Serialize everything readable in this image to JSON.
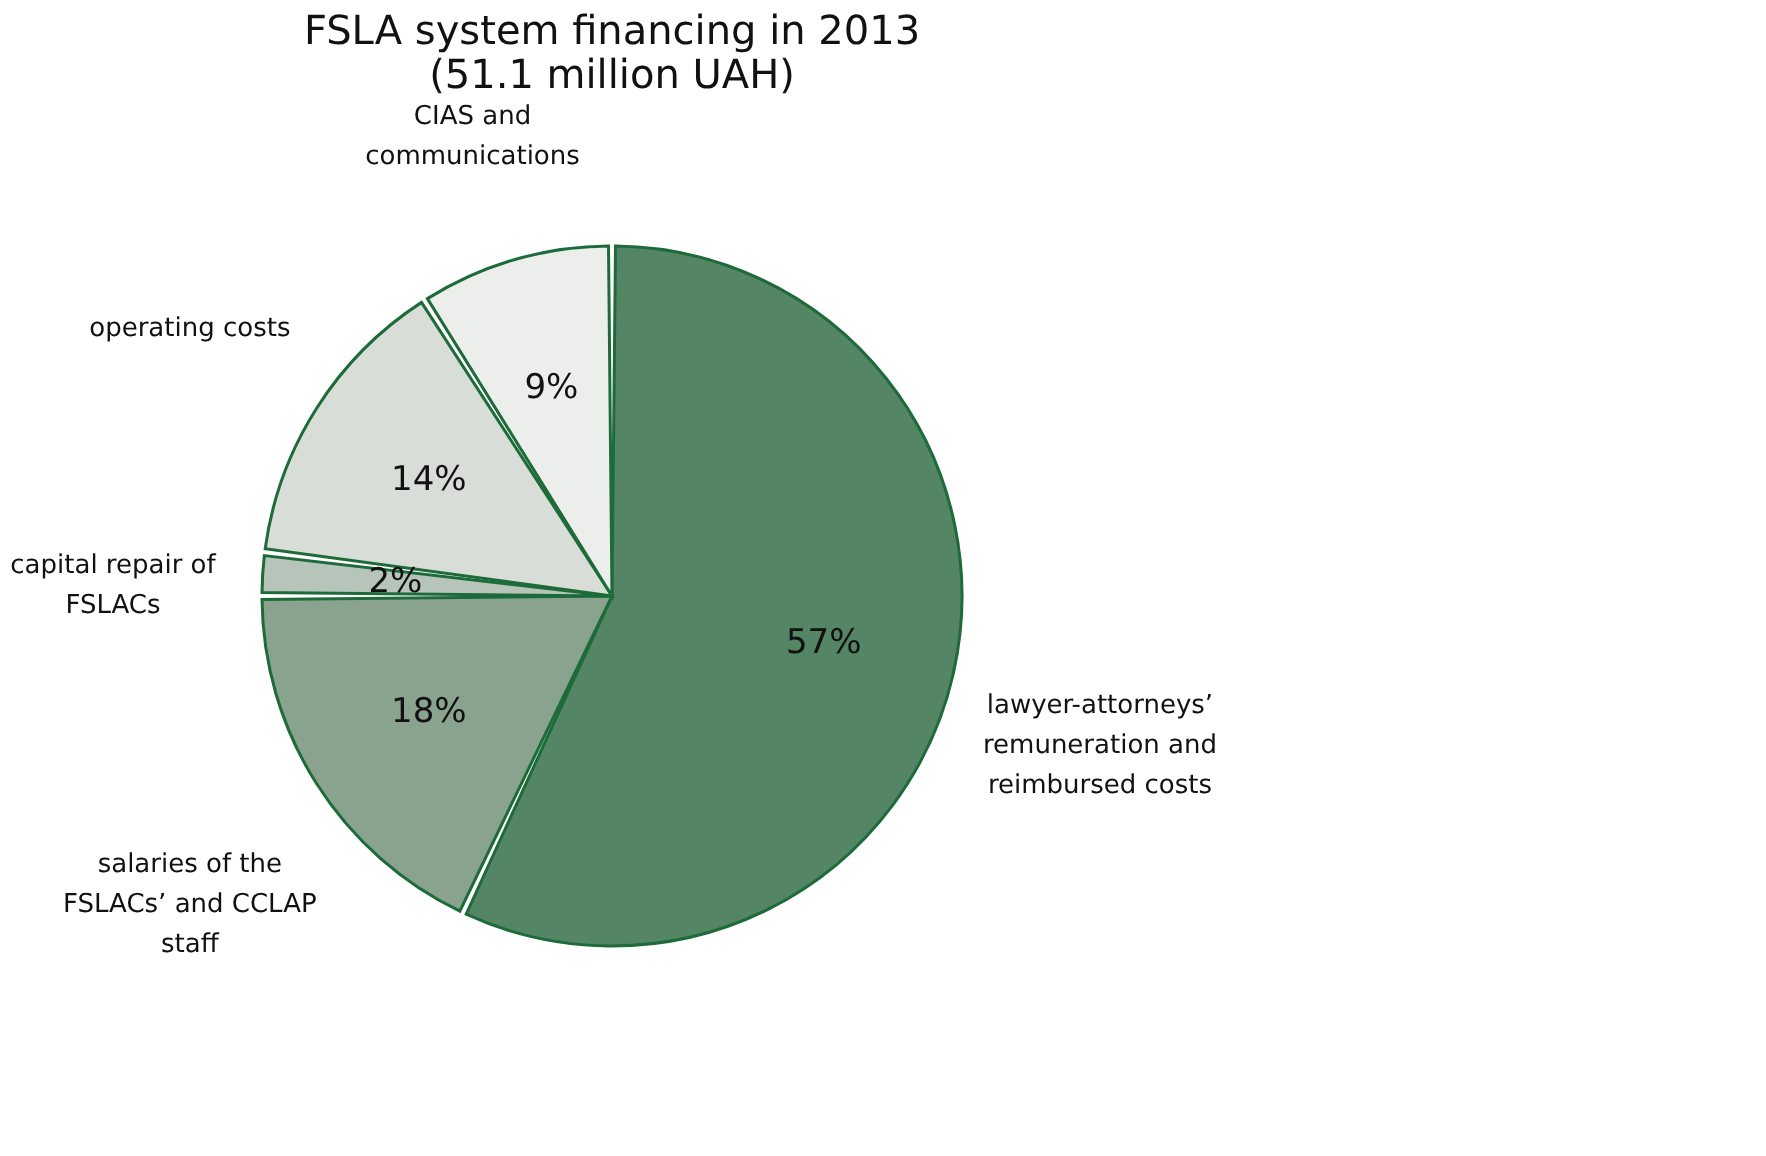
{
  "chart_data": {
    "type": "pie",
    "title": [
      "FSLA system financing in 2013",
      "(51.1 million UAH)"
    ],
    "categories": [
      "lawyer-attorneys’ remuneration and reimbursed costs",
      "salaries of the FSLACs’ and CCLAP staff",
      "capital repair of FSLACs",
      "operating costs",
      "CIAS and communications"
    ],
    "values": [
      57,
      18,
      2,
      14,
      9
    ],
    "colors": [
      "#548565",
      "#8aa38f",
      "#b7c4b9",
      "#d8ddd8",
      "#eceeec"
    ],
    "value_labels": [
      "57%",
      "18%",
      "2%",
      "14%",
      "9%"
    ],
    "legend": false
  }
}
